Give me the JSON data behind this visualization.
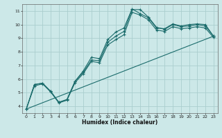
{
  "title": "",
  "xlabel": "Humidex (Indice chaleur)",
  "bg_color": "#cce8e8",
  "grid_color": "#aacece",
  "line_color": "#1a6b6b",
  "xlim": [
    -0.5,
    23.5
  ],
  "ylim": [
    3.5,
    11.5
  ],
  "xticks": [
    0,
    1,
    2,
    3,
    4,
    5,
    6,
    7,
    8,
    9,
    10,
    11,
    12,
    13,
    14,
    15,
    16,
    17,
    18,
    19,
    20,
    21,
    22,
    23
  ],
  "yticks": [
    4,
    5,
    6,
    7,
    8,
    9,
    10,
    11
  ],
  "line1_x": [
    0,
    1,
    2,
    3,
    4,
    5,
    6,
    7,
    8,
    9,
    10,
    11,
    12,
    13,
    14,
    15,
    16,
    17,
    18,
    19,
    20,
    21,
    22,
    23
  ],
  "line1_y": [
    3.8,
    5.6,
    5.7,
    5.1,
    4.3,
    4.5,
    5.85,
    6.6,
    7.6,
    7.5,
    8.9,
    9.45,
    9.75,
    11.15,
    10.8,
    10.5,
    9.75,
    9.7,
    10.05,
    9.9,
    10.0,
    10.05,
    10.0,
    9.15
  ],
  "line2_x": [
    0,
    1,
    2,
    3,
    4,
    5,
    6,
    7,
    8,
    9,
    10,
    11,
    12,
    13,
    14,
    15,
    16,
    17,
    18,
    19,
    20,
    21,
    22,
    23
  ],
  "line2_y": [
    3.8,
    5.6,
    5.7,
    5.1,
    4.3,
    4.5,
    5.85,
    6.5,
    7.4,
    7.35,
    8.7,
    9.15,
    9.5,
    11.1,
    11.1,
    10.55,
    9.8,
    9.65,
    10.0,
    9.85,
    9.9,
    10.0,
    9.9,
    9.15
  ],
  "line3_x": [
    0,
    1,
    2,
    3,
    4,
    5,
    6,
    7,
    8,
    9,
    10,
    11,
    12,
    13,
    14,
    15,
    16,
    17,
    18,
    19,
    20,
    21,
    22,
    23
  ],
  "line3_y": [
    3.8,
    5.5,
    5.65,
    5.05,
    4.25,
    4.45,
    5.75,
    6.4,
    7.3,
    7.2,
    8.5,
    8.9,
    9.25,
    10.9,
    10.7,
    10.35,
    9.6,
    9.5,
    9.85,
    9.7,
    9.75,
    9.85,
    9.75,
    9.05
  ],
  "line4_x": [
    0,
    23
  ],
  "line4_y": [
    3.8,
    9.15
  ]
}
